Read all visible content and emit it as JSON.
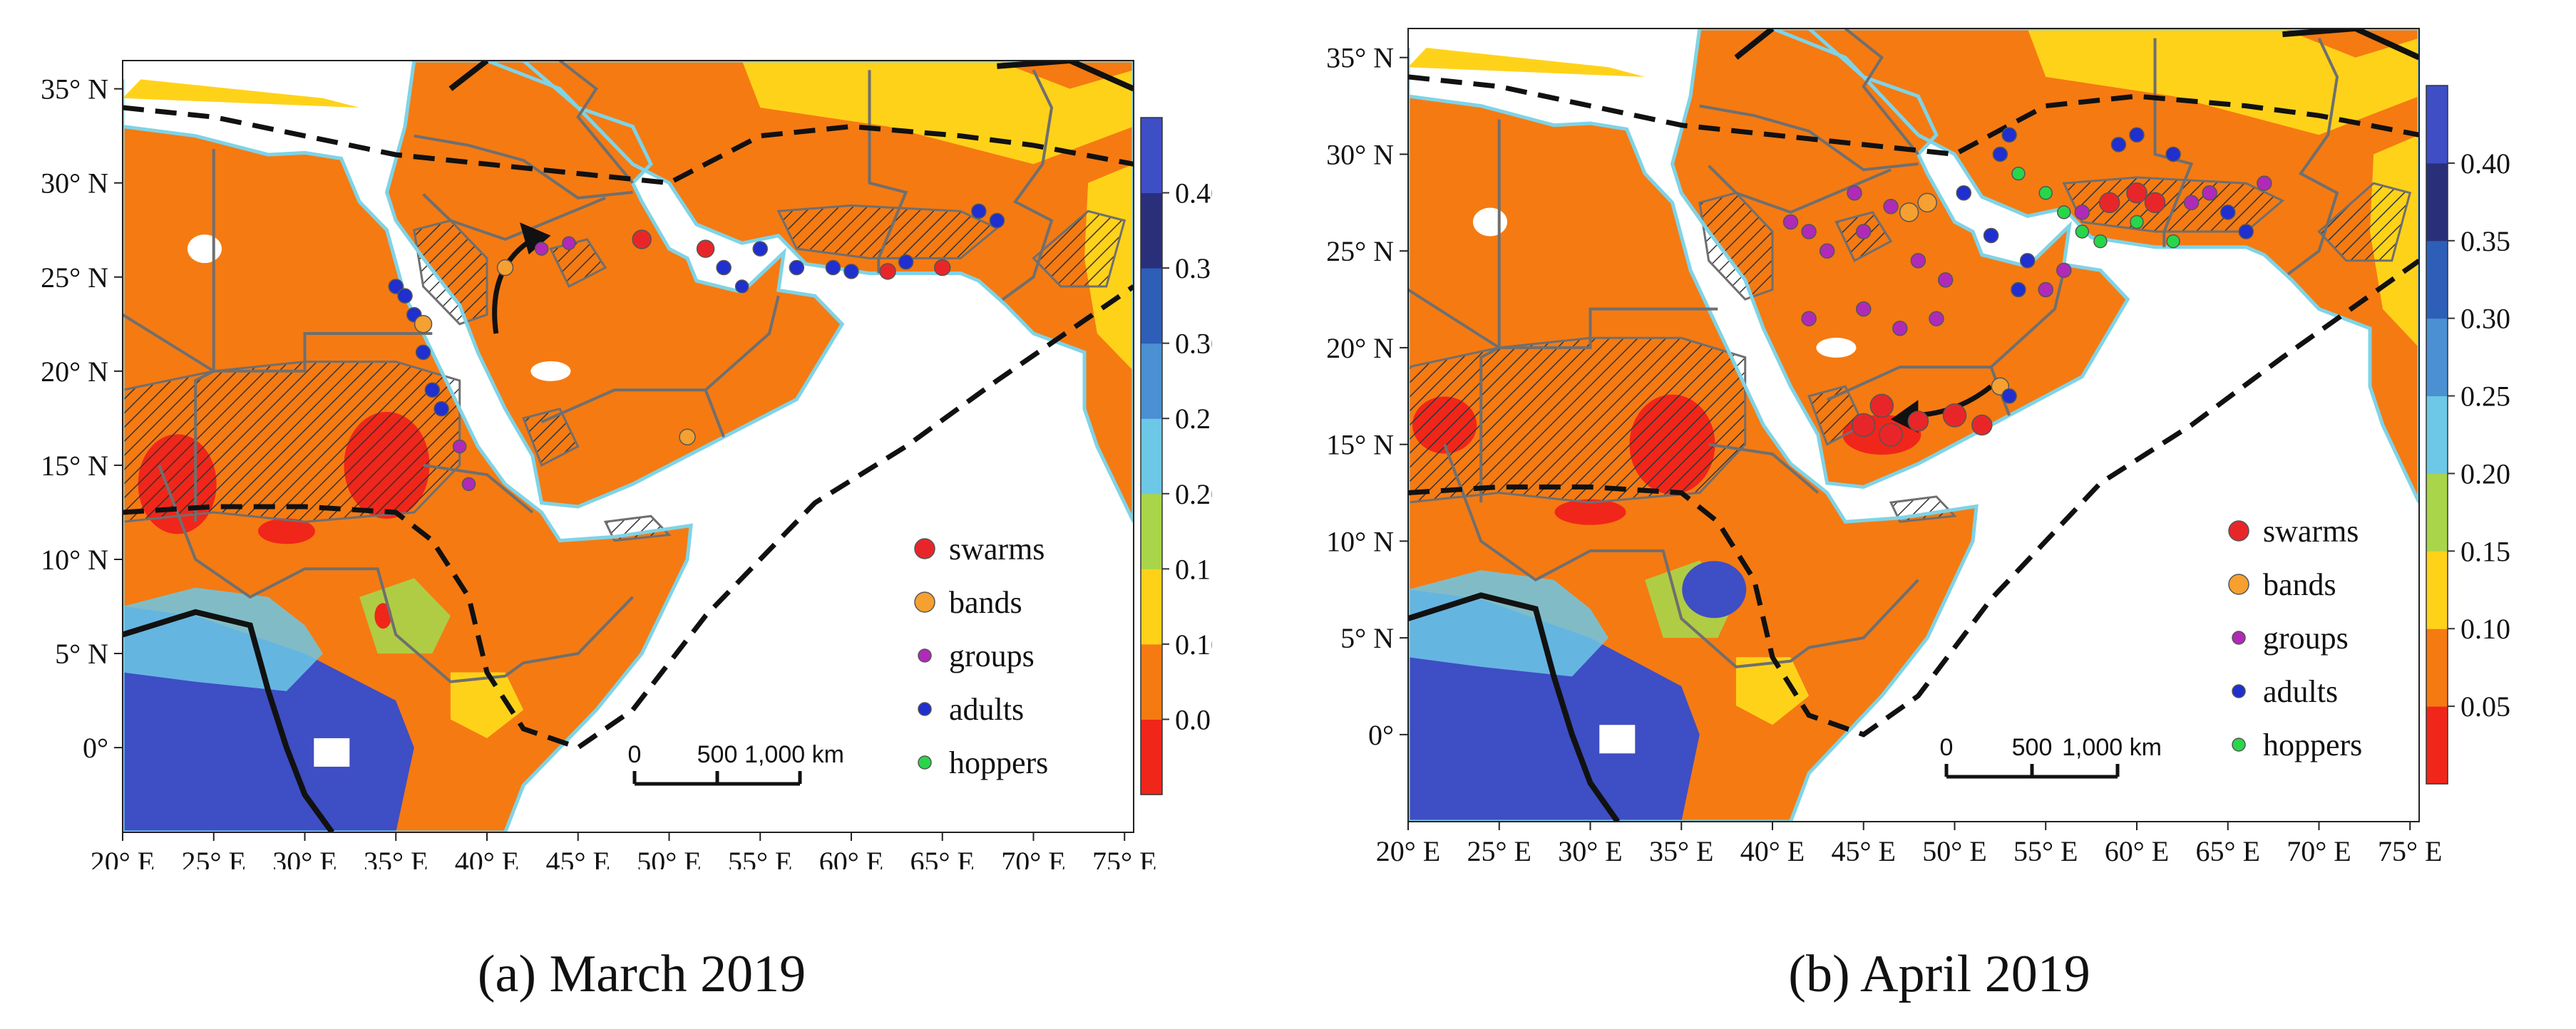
{
  "figure": {
    "colorbar": {
      "colors": [
        "#f0261a",
        "#f57a12",
        "#ffd21a",
        "#a8d54a",
        "#6cc8e6",
        "#4a90d2",
        "#2d5fb8",
        "#2a2f7a",
        "#3e4ec4"
      ],
      "labels": [
        "0.05",
        "0.10",
        "0.15",
        "0.20",
        "0.25",
        "0.30",
        "0.35",
        "0.40"
      ],
      "values": [
        0.05,
        0.1,
        0.15,
        0.2,
        0.25,
        0.3,
        0.35,
        0.4
      ]
    },
    "legend": [
      {
        "label": "swarms",
        "color": "#e8262a"
      },
      {
        "label": "bands",
        "color": "#f5a030"
      },
      {
        "label": "groups",
        "color": "#b02ab8"
      },
      {
        "label": "adults",
        "color": "#1f2fd0"
      },
      {
        "label": "hoppers",
        "color": "#28d64a"
      }
    ],
    "scale_bar": {
      "labels": [
        "0",
        "500",
        "1,000 km"
      ]
    },
    "lat_ticks": [
      "35° N",
      "30° N",
      "25° N",
      "20° N",
      "15° N",
      "10° N",
      "5° N",
      "0°"
    ],
    "lon_ticks": [
      "20° E",
      "25° E",
      "30° E",
      "35° E",
      "40° E",
      "45° E",
      "50° E",
      "55° E",
      "60° E",
      "65° E",
      "70° E",
      "75° E"
    ],
    "map_colors": {
      "orange": "#f57a12",
      "red": "#f0261a",
      "yellow": "#ffd21a",
      "lightgreen": "#a8d54a",
      "cyan": "#6cc8e6",
      "blue": "#3e4ec4",
      "coast": "#7fd3e6",
      "border": "#6f6f6f",
      "hatch": "#333333"
    }
  },
  "panels": [
    {
      "caption": "(a) March 2019"
    },
    {
      "caption": "(b) April 2019"
    }
  ]
}
